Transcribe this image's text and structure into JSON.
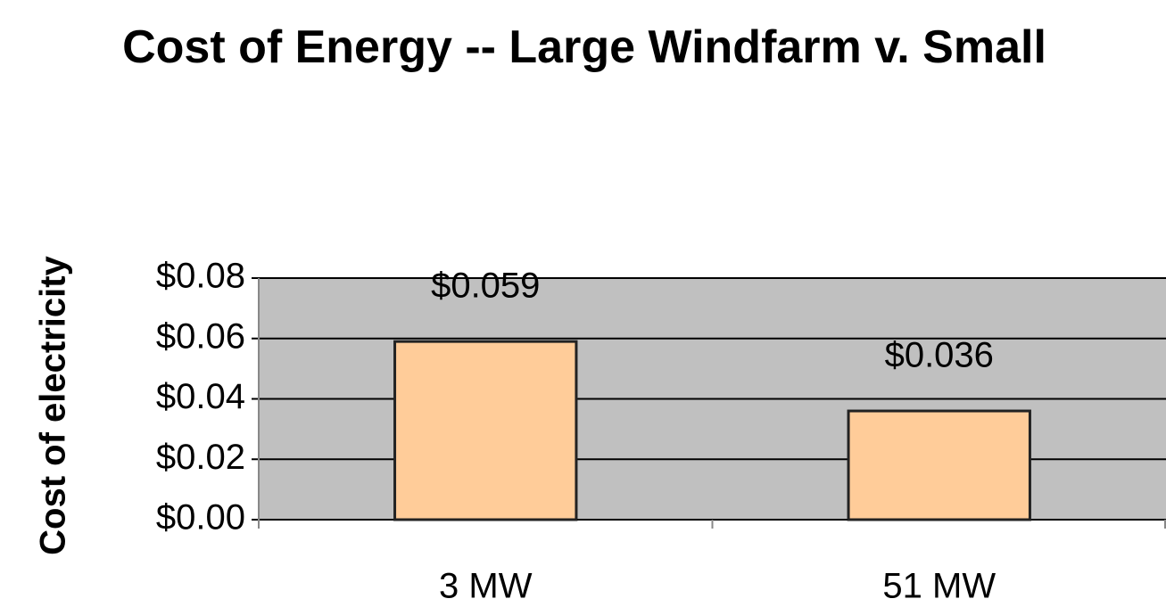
{
  "chart_data": {
    "type": "bar",
    "title": "Cost of Energy -- Large Windfarm v. Small",
    "y_axis_label": "Cost of electricity",
    "categories": [
      "3 MW",
      "51 MW"
    ],
    "values": [
      0.059,
      0.036
    ],
    "value_labels": [
      "$0.059",
      "$0.036"
    ],
    "color": "#ffcc99",
    "ylim": [
      0,
      0.08
    ],
    "yticks": [
      {
        "value": 0,
        "label": "$0.00"
      },
      {
        "value": 0.02,
        "label": "$0.02"
      },
      {
        "value": 0.04,
        "label": "$0.04"
      },
      {
        "value": 0.06,
        "label": "$0.06"
      },
      {
        "value": 0.08,
        "label": "$0.08"
      }
    ],
    "grid": true
  }
}
